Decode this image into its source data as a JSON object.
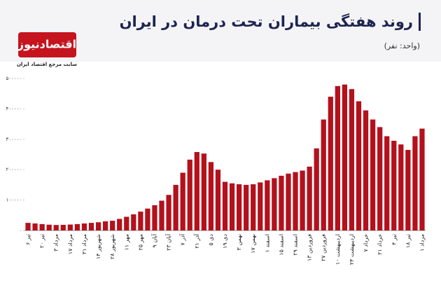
{
  "chart_data": {
    "type": "bar",
    "title": "روند هفتگی بیماران تحت درمان در ایران",
    "subtitle": "(واحد: نفر)",
    "logo": "اقتصادنیوز",
    "tagline": "سایت مرجع اقتصاد ایران",
    "color": "#b3111c",
    "grid": false,
    "categories": [
      "۶ تیر",
      null,
      "۲۰ تیر",
      null,
      "۳ مرداد",
      null,
      "۱۷ مرداد",
      null,
      "۳۱ مرداد",
      null,
      "۱۴ شهریور",
      null,
      "۲۸ شهریور",
      null,
      "۱۱ مهر",
      null,
      "۲۵ مهر",
      null,
      "۹ آبان",
      null,
      "۲۳ آبان",
      null,
      "۷ آذر",
      null,
      "۲۱ آذر",
      null,
      "۵ دی",
      null,
      "۱۹ دی",
      null,
      "۳ بهمن",
      null,
      "۱۷ بهمن",
      null,
      "۱ اسفند",
      null,
      "۱۵ اسفند",
      null,
      "۲۹ اسفند",
      null,
      "۱۳ فروردین",
      null,
      "۲۷ فروردین",
      null,
      "۱۰ اردیبهشت",
      null,
      "۲۴ اردیبهشت",
      null,
      "۷ خرداد",
      null,
      "۲۱ خرداد",
      null,
      "۴ تیر",
      null,
      "۱۸ تیر",
      null,
      "۱ مرداد"
    ],
    "values": [
      25000,
      23000,
      21000,
      19000,
      18000,
      18500,
      19500,
      21000,
      23000,
      25000,
      27000,
      30000,
      32000,
      38000,
      45000,
      53000,
      62000,
      72000,
      83000,
      98000,
      117000,
      150000,
      190000,
      233000,
      258000,
      253000,
      225000,
      200000,
      160000,
      155000,
      152000,
      150000,
      152000,
      158000,
      165000,
      172000,
      180000,
      187000,
      192000,
      197000,
      210000,
      270000,
      365000,
      440000,
      475000,
      480000,
      465000,
      425000,
      395000,
      365000,
      340000,
      310000,
      295000,
      283000,
      265000,
      310000,
      335000
    ],
    "ylim": [
      0,
      500000
    ],
    "yticks": [
      {
        "value": 0,
        "label": "۰"
      },
      {
        "value": 100000,
        "label": "۱۰۰۰۰۰"
      },
      {
        "value": 200000,
        "label": "۲۰۰۰۰۰"
      },
      {
        "value": 300000,
        "label": "۳۰۰۰۰۰"
      },
      {
        "value": 400000,
        "label": "۴۰۰۰۰۰"
      },
      {
        "value": 500000,
        "label": "۵۰۰۰۰۰"
      }
    ]
  }
}
